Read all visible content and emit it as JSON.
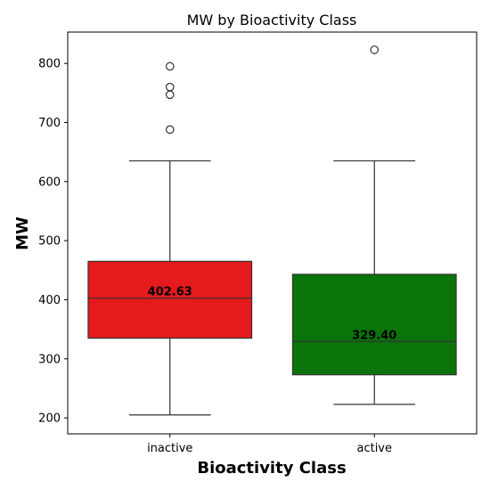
{
  "chart_data": {
    "type": "box",
    "title": "MW by Bioactivity Class",
    "xlabel": "Bioactivity Class",
    "ylabel": "MW",
    "ylim": [
      173,
      853
    ],
    "yticks": [
      200,
      300,
      400,
      500,
      600,
      700,
      800
    ],
    "grid": false,
    "legend": "none",
    "categories": [
      "inactive",
      "active"
    ],
    "series": [
      {
        "category": "inactive",
        "color": "#e41a1c",
        "whisker_low": 205,
        "q1": 335,
        "median": 402.63,
        "q3": 465,
        "whisker_high": 635,
        "outliers": [
          688,
          747,
          760,
          795
        ],
        "median_label": "402.63"
      },
      {
        "category": "active",
        "color": "#0a730a",
        "whisker_low": 223,
        "q1": 273,
        "median": 329.4,
        "q3": 443,
        "whisker_high": 635,
        "outliers": [
          823
        ],
        "median_label": "329.40"
      }
    ]
  }
}
